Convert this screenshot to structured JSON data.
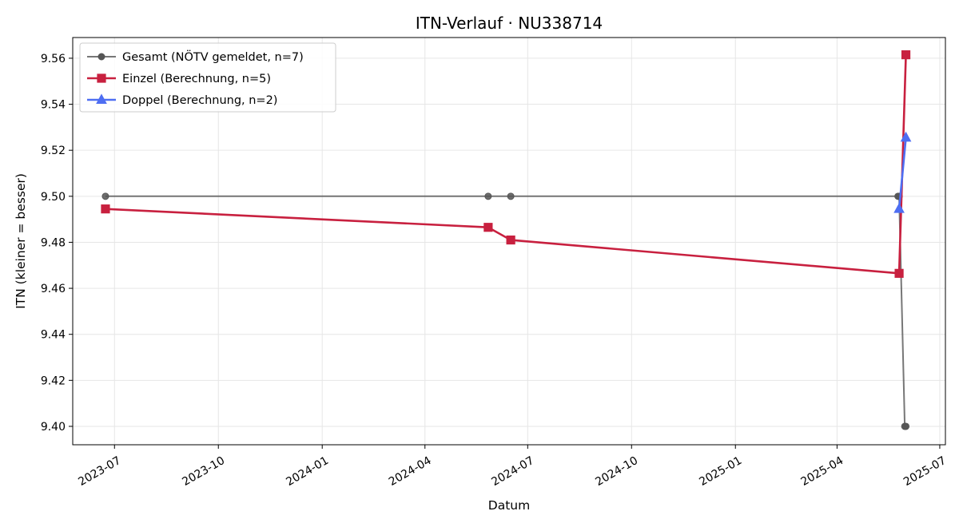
{
  "chart_data": {
    "type": "line",
    "title": "ITN-Verlauf · NU338714",
    "xlabel": "Datum",
    "ylabel": "ITN  (kleiner = besser)",
    "x_type": "date",
    "xlim": [
      "2023-05-25",
      "2025-07-06"
    ],
    "ylim": [
      9.392,
      9.569
    ],
    "x_ticks": [
      "2023-07-01",
      "2023-10-01",
      "2024-01-01",
      "2024-04-01",
      "2024-07-01",
      "2024-10-01",
      "2025-01-01",
      "2025-04-01",
      "2025-07-01"
    ],
    "x_tick_labels": [
      "2023-07",
      "2023-10",
      "2024-01",
      "2024-04",
      "2024-07",
      "2024-10",
      "2025-01",
      "2025-04",
      "2025-07"
    ],
    "y_ticks": [
      9.4,
      9.42,
      9.44,
      9.46,
      9.48,
      9.5,
      9.52,
      9.54,
      9.56
    ],
    "y_tick_labels": [
      "9.40",
      "9.42",
      "9.44",
      "9.46",
      "9.48",
      "9.50",
      "9.52",
      "9.54",
      "9.56"
    ],
    "grid": true,
    "legend": "top-left",
    "series": [
      {
        "name": "Gesamt (NÖTV gemeldet, n=7)",
        "color": "#555555",
        "marker": "circle",
        "x": [
          "2023-06-23",
          "2024-05-27",
          "2024-06-16",
          "2025-05-25",
          "2025-05-26",
          "2025-05-31",
          "2025-06-01"
        ],
        "y": [
          9.5,
          9.5,
          9.5,
          9.5,
          9.5,
          9.4,
          9.4
        ]
      },
      {
        "name": "Einzel (Berechnung, n=5)",
        "color": "#c8203f",
        "marker": "square",
        "x": [
          "2023-06-23",
          "2024-05-27",
          "2024-06-16",
          "2025-05-26",
          "2025-06-01"
        ],
        "y": [
          9.4945,
          9.4865,
          9.481,
          9.4665,
          9.5615
        ]
      },
      {
        "name": "Doppel (Berechnung, n=2)",
        "color": "#4e6ef2",
        "marker": "triangle",
        "x": [
          "2025-05-26",
          "2025-06-01"
        ],
        "y": [
          9.4945,
          9.5255
        ]
      }
    ]
  }
}
